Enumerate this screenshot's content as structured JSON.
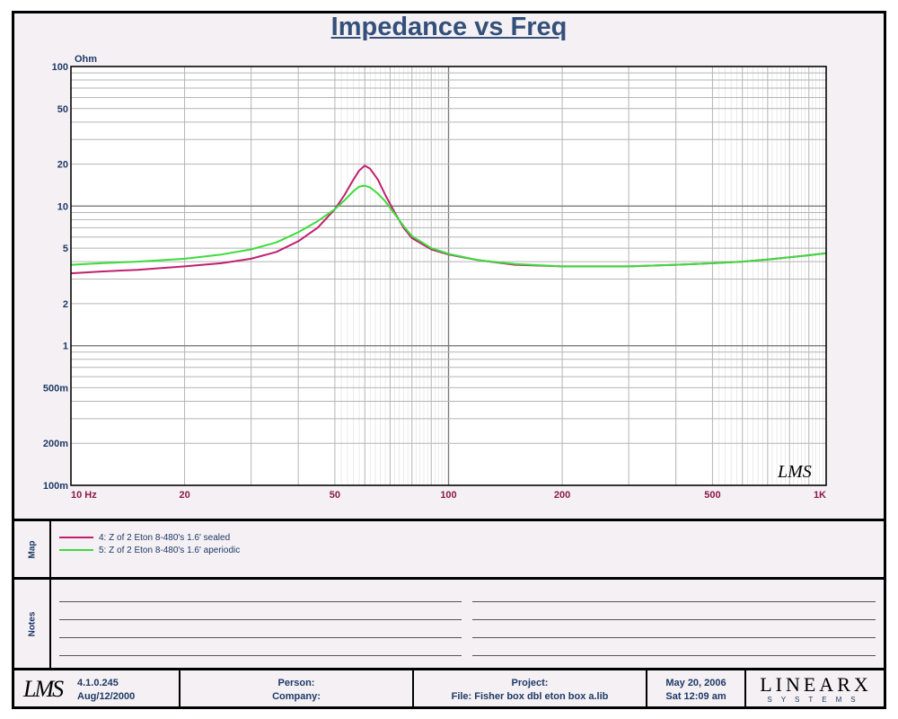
{
  "chart_data": {
    "type": "line",
    "title": "Impedance vs Freq",
    "ylabel": "Ohm",
    "xscale": "log",
    "yscale": "log",
    "xlim": [
      10,
      1000
    ],
    "ylim": [
      0.1,
      100
    ],
    "grid": true,
    "x_ticks": [
      {
        "value": 10,
        "label": "10  Hz"
      },
      {
        "value": 20,
        "label": "20"
      },
      {
        "value": 50,
        "label": "50"
      },
      {
        "value": 100,
        "label": "100"
      },
      {
        "value": 200,
        "label": "200"
      },
      {
        "value": 500,
        "label": "500"
      },
      {
        "value": 1000,
        "label": "1K"
      }
    ],
    "y_ticks": [
      {
        "value": 100,
        "label": "100"
      },
      {
        "value": 50,
        "label": "50"
      },
      {
        "value": 20,
        "label": "20"
      },
      {
        "value": 10,
        "label": "10"
      },
      {
        "value": 5,
        "label": "5"
      },
      {
        "value": 2,
        "label": "2"
      },
      {
        "value": 1,
        "label": "1"
      },
      {
        "value": 0.5,
        "label": "500m"
      },
      {
        "value": 0.2,
        "label": "200m"
      },
      {
        "value": 0.1,
        "label": "100m"
      }
    ],
    "series": [
      {
        "name": "4: Z of 2 Eton 8-480's 1.6' sealed",
        "color": "#c0206e",
        "x": [
          10,
          12,
          15,
          20,
          25,
          30,
          35,
          40,
          45,
          50,
          53,
          56,
          58,
          60,
          62,
          65,
          68,
          72,
          76,
          80,
          90,
          100,
          120,
          150,
          200,
          250,
          300,
          400,
          500,
          600,
          700,
          800,
          900,
          1000
        ],
        "y": [
          3.3,
          3.4,
          3.5,
          3.7,
          3.9,
          4.2,
          4.7,
          5.6,
          7.0,
          9.5,
          12.0,
          15.5,
          18.0,
          19.5,
          18.5,
          15.5,
          12.0,
          9.0,
          7.0,
          5.9,
          4.9,
          4.5,
          4.1,
          3.8,
          3.7,
          3.7,
          3.7,
          3.8,
          3.9,
          4.0,
          4.15,
          4.3,
          4.45,
          4.6
        ]
      },
      {
        "name": "5: Z of 2 Eton 8-480's 1.6' aperiodic",
        "color": "#3cdc3c",
        "x": [
          10,
          12,
          15,
          20,
          25,
          30,
          35,
          40,
          45,
          50,
          53,
          56,
          58,
          60,
          62,
          65,
          68,
          72,
          76,
          80,
          90,
          100,
          120,
          150,
          200,
          250,
          300,
          400,
          500,
          600,
          700,
          800,
          900,
          1000
        ],
        "y": [
          3.8,
          3.9,
          4.0,
          4.2,
          4.5,
          4.9,
          5.5,
          6.5,
          7.8,
          9.5,
          11.0,
          12.8,
          13.8,
          14.0,
          13.6,
          12.3,
          10.8,
          8.8,
          7.2,
          6.1,
          5.0,
          4.55,
          4.1,
          3.85,
          3.7,
          3.7,
          3.7,
          3.8,
          3.9,
          4.0,
          4.15,
          4.3,
          4.45,
          4.6
        ]
      }
    ]
  },
  "watermark": "LMS",
  "map": {
    "label": "Map",
    "entries": [
      {
        "text": "4: Z of 2 Eton 8-480's 1.6' sealed",
        "color": "#c0206e"
      },
      {
        "text": "5: Z of 2 Eton 8-480's 1.6' aperiodic",
        "color": "#3cdc3c"
      }
    ]
  },
  "notes": {
    "label": "Notes"
  },
  "footer": {
    "logo": "LMS",
    "version": "4.1.0.245",
    "build_date": "Aug/12/2000",
    "person_label": "Person:",
    "company_label": "Company:",
    "project_label": "Project:",
    "file_label": "File: Fisher box dbl eton box a.lib",
    "date": "May 20, 2006",
    "time": "Sat 12:09 am",
    "brand": "LINEARX",
    "brand_sub": "SYSTEMS"
  },
  "colors": {
    "title": "#34507a",
    "axis_text": "#1e3a66",
    "x_tick_text": "#8b1a4a",
    "panel_bg": "#f4f0f4"
  }
}
